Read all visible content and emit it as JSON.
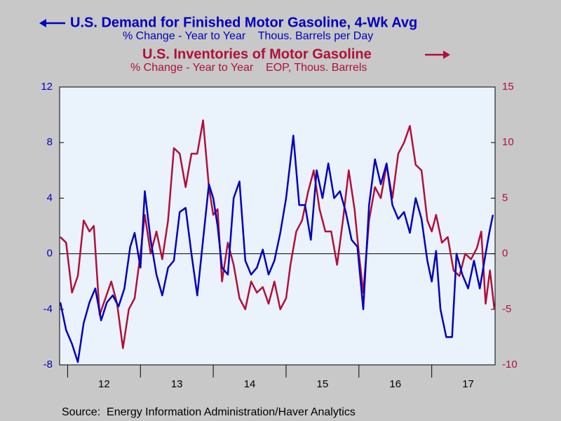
{
  "chart_data": {
    "type": "line",
    "source": "Source:  Energy Information Administration/Haver Analytics",
    "xlim": [
      2011.89,
      2017.87
    ],
    "xticks": [
      {
        "value": 2012.5,
        "label": "12"
      },
      {
        "value": 2013.5,
        "label": "13"
      },
      {
        "value": 2014.5,
        "label": "14"
      },
      {
        "value": 2015.5,
        "label": "15"
      },
      {
        "value": 2016.5,
        "label": "16"
      },
      {
        "value": 2017.5,
        "label": "17"
      }
    ],
    "xminor_ticks": [
      2012,
      2013,
      2014,
      2015,
      2016,
      2017
    ],
    "ylim": [
      -8,
      12
    ],
    "yticks": [
      -8,
      -4,
      0,
      4,
      8,
      12
    ],
    "y2lim": [
      -10,
      15
    ],
    "y2ticks": [
      -10,
      -5,
      0,
      5,
      10,
      15
    ],
    "series": [
      {
        "name": "U.S. Demand for Finished Motor Gasoline, 4-Wk Avg",
        "subtitle": "% Change - Year to Year    Thous. Barrels per Day",
        "color": "#0000c0",
        "axis": "y",
        "x": [
          2011.9,
          2011.98,
          2012.06,
          2012.14,
          2012.22,
          2012.3,
          2012.38,
          2012.46,
          2012.54,
          2012.62,
          2012.7,
          2012.78,
          2012.86,
          2012.92,
          2013.0,
          2013.06,
          2013.14,
          2013.22,
          2013.3,
          2013.38,
          2013.46,
          2013.54,
          2013.62,
          2013.7,
          2013.78,
          2013.86,
          2013.94,
          2014.0,
          2014.06,
          2014.12,
          2014.2,
          2014.28,
          2014.36,
          2014.44,
          2014.52,
          2014.6,
          2014.68,
          2014.76,
          2014.84,
          2014.92,
          2015.0,
          2015.1,
          2015.18,
          2015.26,
          2015.34,
          2015.42,
          2015.5,
          2015.58,
          2015.66,
          2015.74,
          2015.82,
          2015.9,
          2015.98,
          2016.06,
          2016.14,
          2016.22,
          2016.3,
          2016.38,
          2016.46,
          2016.54,
          2016.62,
          2016.7,
          2016.78,
          2016.86,
          2016.94,
          2017.0,
          2017.06,
          2017.12,
          2017.2,
          2017.28,
          2017.34,
          2017.42,
          2017.5,
          2017.58,
          2017.66,
          2017.74,
          2017.79,
          2017.84
        ],
        "values": [
          -3.5,
          -5.5,
          -6.5,
          -7.8,
          -5,
          -3.5,
          -2.5,
          -4.8,
          -3.5,
          -3,
          -3.8,
          -2.5,
          0.5,
          1.5,
          -1,
          4.5,
          1,
          -1.5,
          -3,
          -1,
          -0.5,
          3,
          3.3,
          0,
          -3,
          1,
          5,
          4,
          2,
          -1,
          -1.5,
          4,
          5.2,
          -0.5,
          -1.5,
          -1,
          0.3,
          -1.5,
          -0.5,
          1.5,
          4,
          8.5,
          3.5,
          3.5,
          1,
          6,
          4,
          6.5,
          4,
          4.5,
          3,
          1,
          0.5,
          -4,
          3.5,
          6.8,
          5,
          6.5,
          3.5,
          2.5,
          3,
          1.5,
          4,
          2.5,
          -0.5,
          -2,
          0.2,
          -4,
          -6,
          -6,
          0,
          -1.5,
          -2.5,
          -0.5,
          -2.5,
          0,
          1.5,
          2.8
        ]
      },
      {
        "name": "U.S. Inventories of Motor Gasoline",
        "subtitle": "% Change - Year to Year    EOP, Thous. Barrels",
        "color": "#b0103a",
        "axis": "y2",
        "x": [
          2011.9,
          2011.98,
          2012.06,
          2012.14,
          2012.22,
          2012.3,
          2012.36,
          2012.44,
          2012.52,
          2012.6,
          2012.68,
          2012.76,
          2012.84,
          2012.92,
          2013.0,
          2013.06,
          2013.14,
          2013.22,
          2013.3,
          2013.38,
          2013.46,
          2013.54,
          2013.62,
          2013.7,
          2013.78,
          2013.86,
          2013.94,
          2014.0,
          2014.06,
          2014.12,
          2014.2,
          2014.28,
          2014.36,
          2014.44,
          2014.52,
          2014.6,
          2014.68,
          2014.76,
          2014.84,
          2014.92,
          2015.0,
          2015.06,
          2015.14,
          2015.22,
          2015.3,
          2015.38,
          2015.46,
          2015.54,
          2015.62,
          2015.7,
          2015.78,
          2015.86,
          2015.94,
          2016.0,
          2016.06,
          2016.14,
          2016.22,
          2016.3,
          2016.38,
          2016.46,
          2016.54,
          2016.62,
          2016.7,
          2016.78,
          2016.86,
          2016.94,
          2017.0,
          2017.06,
          2017.14,
          2017.22,
          2017.3,
          2017.38,
          2017.46,
          2017.54,
          2017.62,
          2017.68,
          2017.74,
          2017.8,
          2017.86
        ],
        "values": [
          1.5,
          1,
          -3.5,
          -2,
          3,
          2,
          2.5,
          -5.5,
          -4,
          -2.5,
          -4.5,
          -8.5,
          -5,
          -4,
          0,
          3.5,
          0,
          2,
          -0.5,
          3,
          9.5,
          9,
          6,
          9,
          9,
          12,
          6,
          3.5,
          4,
          -2.5,
          1,
          -1,
          -4,
          -5,
          -2.5,
          -3.5,
          -3,
          -4.5,
          -2.5,
          -5,
          -4,
          -1,
          2,
          3,
          5.5,
          7.5,
          4,
          2,
          2,
          -1,
          3,
          7.5,
          4,
          0,
          -3.5,
          3,
          6,
          5,
          8,
          5,
          9,
          10,
          11.5,
          8,
          7.5,
          3,
          2,
          3.5,
          1,
          1.5,
          -1.5,
          -2,
          0,
          -0.5,
          0.5,
          2,
          -4.5,
          -1.5,
          -5
        ]
      }
    ]
  }
}
